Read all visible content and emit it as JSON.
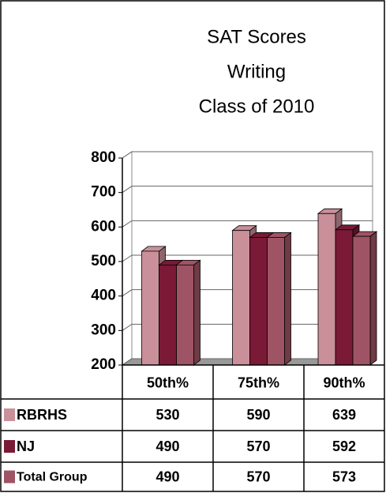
{
  "chart_data": {
    "type": "bar3d",
    "title": [
      "SAT Scores",
      "Writing",
      "Class of 2010"
    ],
    "categories": [
      "50th%",
      "75th%",
      "90th%"
    ],
    "series": [
      {
        "name": "RBRHS",
        "color": "#c9909a",
        "values": [
          530,
          590,
          639
        ]
      },
      {
        "name": "NJ",
        "color": "#7a1a36",
        "values": [
          490,
          570,
          592
        ]
      },
      {
        "name": "Total Group",
        "color": "#9e5464",
        "values": [
          490,
          570,
          573
        ]
      }
    ],
    "ylim": [
      200,
      800
    ],
    "yticks": [
      200,
      300,
      400,
      500,
      600,
      700,
      800
    ],
    "grid": true
  }
}
